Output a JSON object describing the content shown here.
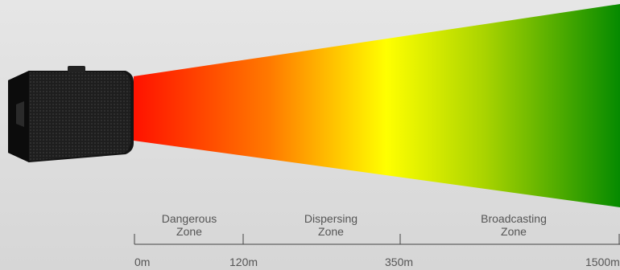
{
  "zones": [
    {
      "line1": "Dangerous",
      "line2": "Zone"
    },
    {
      "line1": "Dispersing",
      "line2": "Zone"
    },
    {
      "line1": "Broadcasting",
      "line2": "Zone"
    }
  ],
  "distances": [
    "0m",
    "120m",
    "350m",
    "1500m"
  ],
  "colors": {
    "gradient_start": "#ff1200",
    "gradient_mid": "#ffff00",
    "gradient_end": "#058a00",
    "text": "#555555",
    "speaker": "#1a1a1a"
  }
}
